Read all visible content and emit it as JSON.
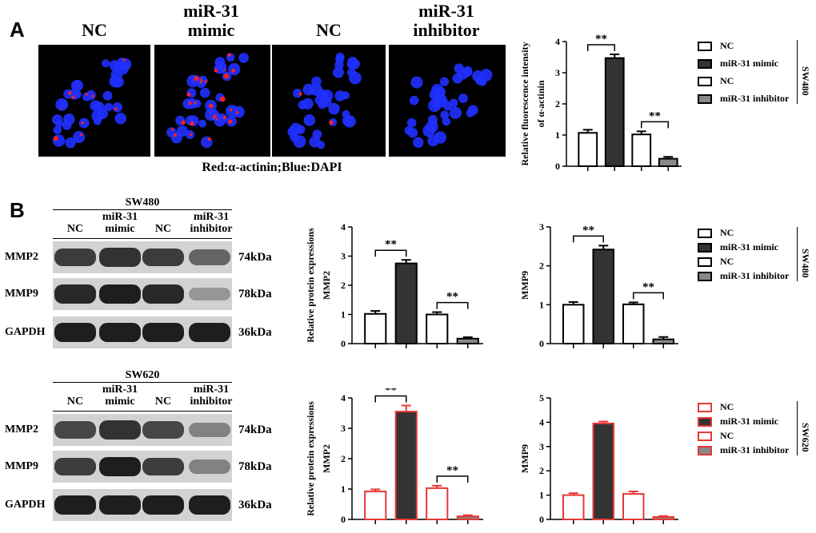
{
  "panels": {
    "a": "A",
    "b": "B"
  },
  "micrographs": {
    "labels": [
      "NC",
      "miR-31\nmimic",
      "NC",
      "miR-31\ninhibitor"
    ],
    "caption": "Red:α-actinin;Blue:DAPI",
    "red_signal_level": [
      0.35,
      0.75,
      0.05,
      0.0
    ],
    "colors": {
      "background": "#000000",
      "nuclei": "#2030ff",
      "actinin": "#ff2020"
    }
  },
  "blots": [
    {
      "cell_line": "SW480",
      "lanes": [
        "NC",
        "miR-31\nmimic",
        "NC",
        "miR-31\ninhibitor"
      ],
      "rows": [
        {
          "protein": "MMP2",
          "kda": "74kDa",
          "intensity": [
            0.75,
            0.8,
            0.75,
            0.55
          ]
        },
        {
          "protein": "MMP9",
          "kda": "78kDa",
          "intensity": [
            0.85,
            0.9,
            0.85,
            0.3
          ]
        },
        {
          "protein": "GAPDH",
          "kda": "36kDa",
          "intensity": [
            0.9,
            0.9,
            0.9,
            0.9
          ]
        }
      ]
    },
    {
      "cell_line": "SW620",
      "lanes": [
        "NC",
        "miR-31\nmimic",
        "NC",
        "miR-31\ninhibitor"
      ],
      "rows": [
        {
          "protein": "MMP2",
          "kda": "74kDa",
          "intensity": [
            0.7,
            0.8,
            0.7,
            0.4
          ]
        },
        {
          "protein": "MMP9",
          "kda": "78kDa",
          "intensity": [
            0.75,
            0.9,
            0.75,
            0.4
          ]
        },
        {
          "protein": "GAPDH",
          "kda": "36kDa",
          "intensity": [
            0.9,
            0.9,
            0.9,
            0.9
          ]
        }
      ]
    }
  ],
  "legends": [
    {
      "items": [
        "NC",
        "miR-31 mimic",
        "NC",
        "miR-31 inhibitor"
      ],
      "group": "SW480",
      "edge": "#000000"
    },
    {
      "items": [
        "NC",
        "miR-31 mimic",
        "NC",
        "miR-31 inhibitor"
      ],
      "group": "SW480",
      "edge": "#000000"
    },
    {
      "items": [
        "NC",
        "miR-31 mimic",
        "NC",
        "miR-31 inhibitor"
      ],
      "group": "SW620",
      "edge": "#e53935"
    }
  ],
  "colors": {
    "bar_white": "#ffffff",
    "bar_dark": "#333333",
    "bar_gray": "#888888",
    "edge_black": "#000000",
    "edge_red": "#e53935"
  },
  "chart_data": [
    {
      "type": "bar",
      "title": "",
      "xlabel": "",
      "ylabel": "Relative fluorescence intensity\nof α-actinin",
      "categories": [
        "NC",
        "miR-31 mimic",
        "NC",
        "miR-31 inhibitor"
      ],
      "values": [
        1.07,
        3.47,
        1.02,
        0.24
      ],
      "errors": [
        0.1,
        0.12,
        0.1,
        0.06
      ],
      "ylim": [
        0,
        4
      ],
      "yticks": [
        "0",
        "1",
        "2",
        "3",
        "4"
      ],
      "significance": [
        {
          "pair": [
            0,
            1
          ],
          "label": "**"
        },
        {
          "pair": [
            2,
            3
          ],
          "label": "**"
        }
      ],
      "edge": "black"
    },
    {
      "type": "bar",
      "title": "",
      "xlabel": "",
      "ylabel": "Relative protein expressions\nMMP2",
      "categories": [
        "NC",
        "miR-31 mimic",
        "NC",
        "miR-31 inhibitor"
      ],
      "values": [
        1.02,
        2.75,
        1.0,
        0.17
      ],
      "errors": [
        0.1,
        0.12,
        0.08,
        0.05
      ],
      "ylim": [
        0,
        4
      ],
      "yticks": [
        "0",
        "1",
        "2",
        "3",
        "4"
      ],
      "significance": [
        {
          "pair": [
            0,
            1
          ],
          "label": "**"
        },
        {
          "pair": [
            2,
            3
          ],
          "label": "**"
        }
      ],
      "edge": "black"
    },
    {
      "type": "bar",
      "title": "",
      "xlabel": "",
      "ylabel": "MMP9",
      "categories": [
        "NC",
        "miR-31 mimic",
        "NC",
        "miR-31 inhibitor"
      ],
      "values": [
        1.0,
        2.42,
        1.01,
        0.11
      ],
      "errors": [
        0.07,
        0.1,
        0.05,
        0.06
      ],
      "ylim": [
        0,
        3
      ],
      "yticks": [
        "0",
        "1",
        "2",
        "3"
      ],
      "significance": [
        {
          "pair": [
            0,
            1
          ],
          "label": "**"
        },
        {
          "pair": [
            2,
            3
          ],
          "label": "**"
        }
      ],
      "edge": "black"
    },
    {
      "type": "bar",
      "title": "",
      "xlabel": "",
      "ylabel": "Relative protein expressions\nMMP2",
      "categories": [
        "NC",
        "miR-31 mimic",
        "NC",
        "miR-31 inhibitor"
      ],
      "values": [
        0.92,
        3.55,
        1.03,
        0.1
      ],
      "errors": [
        0.07,
        0.2,
        0.08,
        0.04
      ],
      "ylim": [
        0,
        4
      ],
      "yticks": [
        "0",
        "1",
        "2",
        "3",
        "4"
      ],
      "significance": [
        {
          "pair": [
            0,
            1
          ],
          "label": "**"
        },
        {
          "pair": [
            2,
            3
          ],
          "label": "**"
        }
      ],
      "edge": "red"
    },
    {
      "type": "bar",
      "title": "",
      "xlabel": "",
      "ylabel": "MMP9",
      "categories": [
        "NC",
        "miR-31 mimic",
        "NC",
        "miR-31 inhibitor"
      ],
      "values": [
        1.0,
        3.95,
        1.05,
        0.1
      ],
      "errors": [
        0.08,
        0.08,
        0.1,
        0.04
      ],
      "ylim": [
        0,
        5
      ],
      "yticks": [
        "0",
        "1",
        "2",
        "3",
        "4",
        "5"
      ],
      "significance": [],
      "edge": "red"
    }
  ]
}
